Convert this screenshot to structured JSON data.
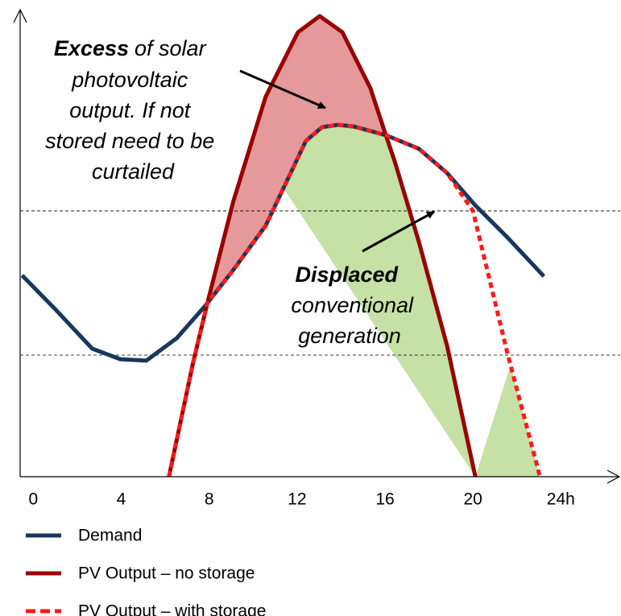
{
  "chart_data": {
    "type": "line",
    "xlim": [
      -0.6,
      26.7
    ],
    "ylim": [
      0,
      100
    ],
    "xticks": [
      0,
      4,
      8,
      12,
      16,
      20,
      {
        "value": 24,
        "label": "24h"
      }
    ],
    "reference_lines": [
      57.7,
      26.4
    ],
    "series": [
      {
        "name": "Demand",
        "color": "#17375e",
        "x": [
          -0.51,
          1.03,
          2.68,
          3.96,
          5.14,
          6.53,
          7.82,
          9.1,
          10.57,
          12.4,
          13.14,
          13.87,
          14.61,
          16.07,
          17.54,
          18.83,
          20.11,
          21.58,
          23.23
        ],
        "values": [
          43.7,
          36.2,
          27.8,
          25.5,
          25.2,
          30.1,
          37.1,
          44.9,
          54.5,
          72.9,
          75.9,
          76.4,
          76.0,
          74.1,
          71.2,
          65.9,
          58.9,
          51.9,
          43.5
        ]
      },
      {
        "name": "PV Output – no storage",
        "color": "#990000",
        "x": [
          6.17,
          7.27,
          7.93,
          9.1,
          10.57,
          12.04,
          13.03,
          14.06,
          15.34,
          16.0,
          16.44,
          17.54,
          18.83,
          20.11
        ],
        "values": [
          0,
          24.8,
          37.9,
          59.8,
          82.5,
          96.5,
          100,
          96.5,
          84.3,
          74.7,
          68.5,
          51.0,
          28.3,
          0
        ]
      },
      {
        "name": "PV Output – with storage",
        "color": "#ff1a1a",
        "dashed": true,
        "x": [
          6.17,
          7.27,
          7.93,
          9.1,
          10.57,
          12.4,
          13.14,
          13.87,
          14.61,
          16.07,
          17.54,
          18.83,
          20.0,
          21.58,
          23.05
        ],
        "values": [
          0,
          24.8,
          37.9,
          44.9,
          54.5,
          72.9,
          75.9,
          76.4,
          76.0,
          74.1,
          71.2,
          65.9,
          57.7,
          26.6,
          0
        ]
      }
    ],
    "fill_excess": "#e6999a",
    "fill_displaced": "#c5e1a5",
    "annotations": [
      {
        "lead": "Excess",
        "rest": [
          "of solar",
          "photovoltaic",
          "output. If not",
          "stored need to be",
          "curtailed"
        ]
      },
      {
        "lead": "Displaced",
        "rest": [
          "conventional",
          "generation"
        ]
      }
    ]
  }
}
